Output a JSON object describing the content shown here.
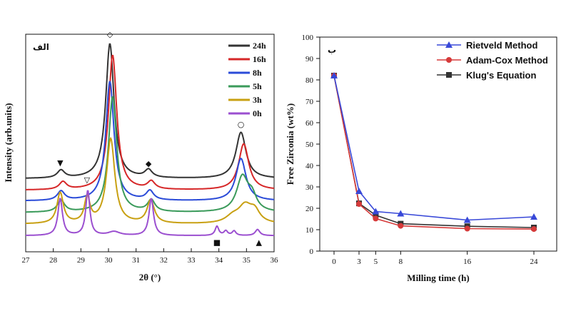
{
  "chart_data": [
    {
      "type": "line",
      "panel_label": "الف",
      "xlabel": "2θ (°)",
      "ylabel": "Intensity (arb.units)",
      "xlim": [
        27,
        36
      ],
      "x_ticks": [
        "27",
        "28",
        "29",
        "30",
        "31",
        "32",
        "33",
        "34",
        "35",
        "36"
      ],
      "grid": false,
      "legend_position": "top-right",
      "series": [
        {
          "name": "24h",
          "color": "#333333",
          "baseline": 0.81,
          "peaks": [
            [
              28.28,
              0.1,
              0.16
            ],
            [
              30.05,
              1.75,
              0.18
            ],
            [
              31.45,
              0.1,
              0.16
            ],
            [
              34.8,
              0.6,
              0.22
            ]
          ]
        },
        {
          "name": "16h",
          "color": "#d62728",
          "baseline": 0.66,
          "peaks": [
            [
              28.35,
              0.1,
              0.16
            ],
            [
              30.15,
              1.75,
              0.18
            ],
            [
              31.55,
              0.1,
              0.16
            ],
            [
              34.9,
              0.6,
              0.22
            ]
          ]
        },
        {
          "name": "8h",
          "color": "#2b4bd8",
          "baseline": 0.52,
          "peaks": [
            [
              28.28,
              0.12,
              0.16
            ],
            [
              30.05,
              1.55,
              0.18
            ],
            [
              31.5,
              0.12,
              0.16
            ],
            [
              34.8,
              0.55,
              0.22
            ]
          ]
        },
        {
          "name": "5h",
          "color": "#3a9a5a",
          "baseline": 0.37,
          "peaks": [
            [
              28.28,
              0.15,
              0.16
            ],
            [
              30.15,
              1.5,
              0.18
            ],
            [
              31.55,
              0.15,
              0.16
            ],
            [
              34.85,
              0.45,
              0.25
            ],
            [
              35.2,
              0.18,
              0.2
            ]
          ]
        },
        {
          "name": "3h",
          "color": "#c8a012",
          "baseline": 0.22,
          "peaks": [
            [
              28.25,
              0.4,
              0.14
            ],
            [
              29.23,
              0.33,
              0.12
            ],
            [
              30.08,
              1.1,
              0.18
            ],
            [
              31.53,
              0.3,
              0.16
            ],
            [
              34.5,
              0.08,
              0.3
            ],
            [
              34.95,
              0.22,
              0.3
            ],
            [
              35.3,
              0.14,
              0.22
            ]
          ]
        },
        {
          "name": "0h",
          "color": "#9b4fd0",
          "baseline": 0.07,
          "peaks": [
            [
              28.25,
              0.48,
              0.1
            ],
            [
              29.25,
              0.58,
              0.09
            ],
            [
              30.2,
              0.05,
              0.25
            ],
            [
              31.55,
              0.48,
              0.1
            ],
            [
              33.93,
              0.12,
              0.08
            ],
            [
              34.25,
              0.06,
              0.08
            ],
            [
              34.55,
              0.06,
              0.08
            ],
            [
              35.4,
              0.08,
              0.1
            ]
          ]
        }
      ],
      "phase_markers": [
        {
          "symbol": "▼",
          "x": 28.25,
          "y": 0.98
        },
        {
          "symbol": "◇",
          "x": 30.05,
          "y": 2.65
        },
        {
          "symbol": "◆",
          "x": 31.45,
          "y": 0.97
        },
        {
          "symbol": "○",
          "x": 34.8,
          "y": 1.48
        },
        {
          "symbol": "▽",
          "x": 29.22,
          "y": 0.76
        },
        {
          "symbol": "■",
          "x": 33.93,
          "y": -0.05
        },
        {
          "symbol": "▲",
          "x": 35.45,
          "y": -0.05
        }
      ]
    },
    {
      "type": "line",
      "panel_label": "ب",
      "xlabel": "Milling time (h)",
      "ylabel": "Free Zirconia (wt%)",
      "ylim": [
        0,
        100
      ],
      "y_ticks": [
        "0",
        "10",
        "20",
        "30",
        "40",
        "50",
        "60",
        "70",
        "80",
        "90",
        "100"
      ],
      "x_ticks": [
        "0",
        "3",
        "5",
        "8",
        "16",
        "24"
      ],
      "grid": false,
      "legend_position": "top-right",
      "categories": [
        0,
        3,
        5,
        8,
        16,
        24
      ],
      "series": [
        {
          "name": "Rietveld Method",
          "color": "#3848d8",
          "marker": "triangle",
          "values": [
            82,
            28,
            18.5,
            17.5,
            14.5,
            16
          ]
        },
        {
          "name": "Adam-Cox Method",
          "color": "#d63a3a",
          "marker": "circle",
          "values": [
            82,
            22,
            15.2,
            11.8,
            10.5,
            10.3
          ]
        },
        {
          "name": "Klug's Equation",
          "color": "#333333",
          "marker": "square",
          "values": [
            82,
            22.3,
            16.8,
            12.8,
            11.6,
            11
          ]
        }
      ]
    }
  ]
}
